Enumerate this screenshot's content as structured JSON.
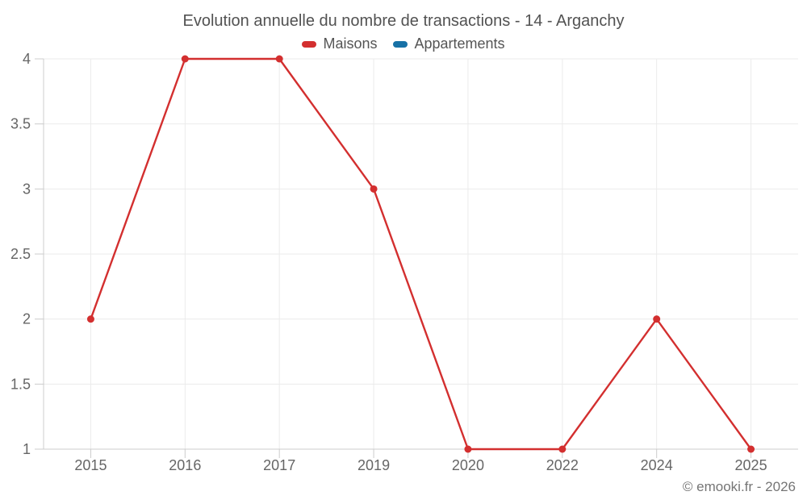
{
  "chart_data": {
    "type": "line",
    "title": "Evolution annuelle du nombre de transactions - 14 - Arganchy",
    "categories": [
      "2015",
      "2016",
      "2017",
      "2019",
      "2020",
      "2022",
      "2024",
      "2025"
    ],
    "series": [
      {
        "name": "Maisons",
        "color": "#d32f2f",
        "values": [
          2,
          4,
          4,
          3,
          1,
          1,
          2,
          1
        ]
      },
      {
        "name": "Appartements",
        "color": "#1771a6",
        "values": []
      }
    ],
    "xlabel": "",
    "ylabel": "",
    "ylim": [
      1,
      4
    ],
    "yticks": [
      1,
      1.5,
      2,
      2.5,
      3,
      3.5,
      4
    ],
    "grid": true,
    "legend_position": "top",
    "marker": "circle"
  },
  "colors": {
    "grid": "#ebebeb",
    "axis": "#cccccc"
  },
  "footer": {
    "copyright": "© emooki.fr - 2026"
  }
}
